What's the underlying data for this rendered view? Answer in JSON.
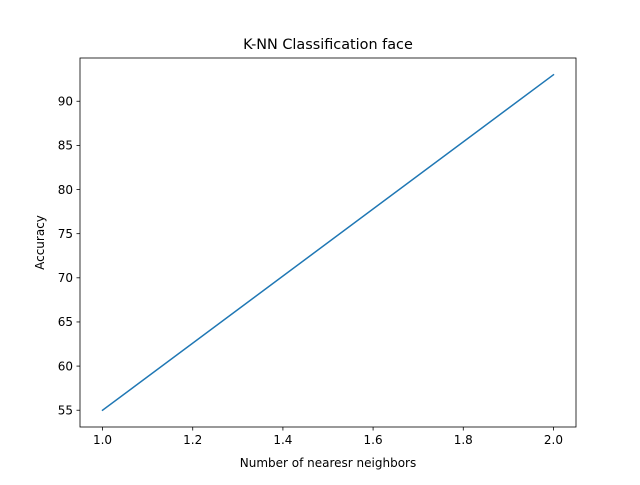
{
  "chart_data": {
    "type": "line",
    "title": "K-NN Classification face",
    "xlabel": "Number of nearesr neighbors",
    "ylabel": "Accuracy",
    "xlim": [
      0.95,
      2.05
    ],
    "ylim": [
      53.1,
      94.9
    ],
    "grid": false,
    "x_ticks": [
      1.0,
      1.2,
      1.4,
      1.6,
      1.8,
      2.0
    ],
    "x_tick_labels": [
      "1.0",
      "1.2",
      "1.4",
      "1.6",
      "1.8",
      "2.0"
    ],
    "y_ticks": [
      55,
      60,
      65,
      70,
      75,
      80,
      85,
      90
    ],
    "y_tick_labels": [
      "55",
      "60",
      "65",
      "70",
      "75",
      "80",
      "85",
      "90"
    ],
    "series": [
      {
        "color": "#1f77b4",
        "x": [
          1.0,
          2.0
        ],
        "y": [
          55.0,
          93.0
        ]
      }
    ]
  }
}
